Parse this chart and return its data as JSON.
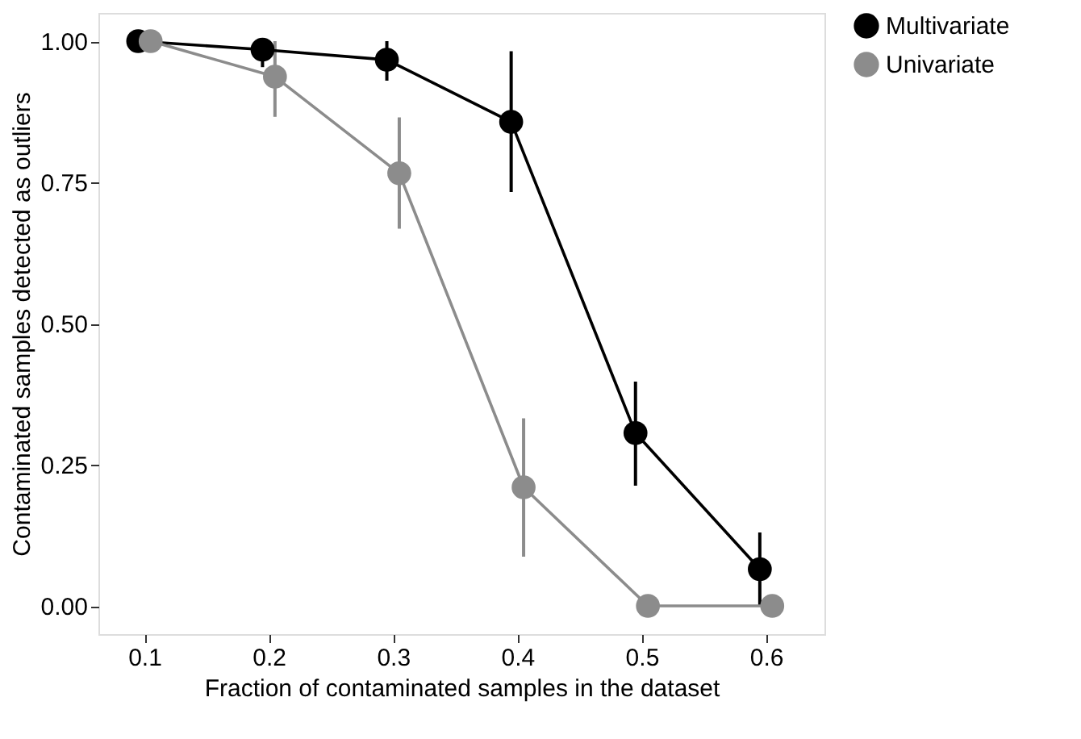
{
  "chart_data": {
    "type": "line",
    "xlabel": "Fraction of contaminated samples in the dataset",
    "ylabel": "Contaminated samples detected as outliers",
    "series": [
      {
        "name": "Multivariate",
        "color": "#000000",
        "x": [
          0.095,
          0.195,
          0.295,
          0.395,
          0.495,
          0.595
        ],
        "values": [
          1.0,
          0.985,
          0.967,
          0.857,
          0.306,
          0.065
        ],
        "errors": [
          null,
          [
            0.954,
            1.0
          ],
          [
            0.93,
            1.0
          ],
          [
            0.733,
            0.982
          ],
          [
            0.213,
            0.397
          ],
          [
            0.0,
            0.13
          ]
        ]
      },
      {
        "name": "Univariate",
        "color": "#8c8c8c",
        "x": [
          0.105,
          0.205,
          0.305,
          0.405,
          0.505,
          0.605
        ],
        "values": [
          1.0,
          0.937,
          0.766,
          0.21,
          0.0,
          0.0
        ],
        "errors": [
          null,
          [
            0.866,
            1.0
          ],
          [
            0.668,
            0.865
          ],
          [
            0.087,
            0.332
          ],
          null,
          null
        ]
      }
    ],
    "xlim": [
      0.063,
      0.647
    ],
    "xticks": [
      0.1,
      0.2,
      0.3,
      0.4,
      0.5,
      0.6
    ],
    "ylim": [
      -0.05,
      1.05
    ],
    "yticks": [
      {
        "value": 0,
        "label": "0.00"
      },
      {
        "value": 0.25,
        "label": "0.25"
      },
      {
        "value": 0.5,
        "label": "0.50"
      },
      {
        "value": 0.75,
        "label": "0.75"
      },
      {
        "value": 1,
        "label": "1.00"
      }
    ],
    "grid": false,
    "legend": "right",
    "marker": "circle",
    "line_style": "solid"
  }
}
